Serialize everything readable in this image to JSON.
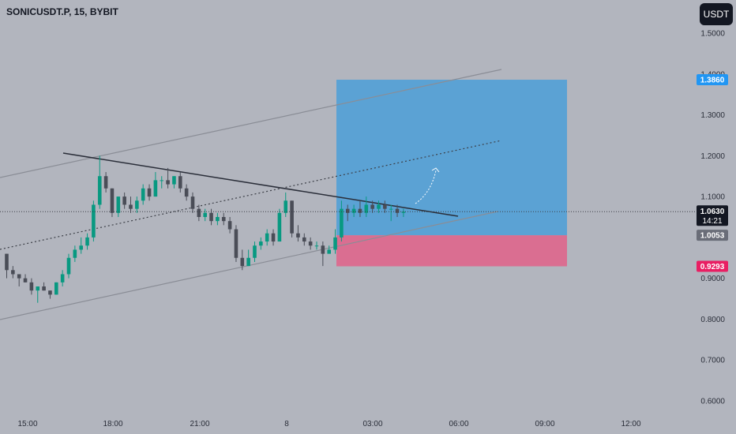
{
  "header": {
    "symbol": "SONICUSDT.P, 15, BYBIT",
    "currency": "USDT"
  },
  "colors": {
    "background": "#b2b5be",
    "bull": "#089981",
    "bear": "#4a4d57",
    "target_zone": "#4b9fd8",
    "stop_zone": "#e0628a",
    "target_tag": "#2196f3",
    "stop_tag": "#e91e63",
    "price_tag": "#131722",
    "gray_tag": "#6a6d78"
  },
  "chart_data": {
    "type": "candlestick",
    "title": "",
    "ylim": [
      0.58,
      1.52
    ],
    "y_ticks": [
      "1.5000",
      "1.4000",
      "1.3000",
      "1.2000",
      "1.1000",
      "0.9000",
      "0.8000",
      "0.7000",
      "0.6000"
    ],
    "x_ticks": [
      "15:00",
      "18:00",
      "21:00",
      "8",
      "03:00",
      "06:00",
      "09:00",
      "12:00"
    ],
    "candles": [
      [
        0.96,
        0.96,
        0.9,
        0.92
      ],
      [
        0.92,
        0.93,
        0.9,
        0.91
      ],
      [
        0.91,
        0.91,
        0.88,
        0.9
      ],
      [
        0.9,
        0.91,
        0.89,
        0.89
      ],
      [
        0.89,
        0.9,
        0.86,
        0.87
      ],
      [
        0.87,
        0.88,
        0.84,
        0.88
      ],
      [
        0.88,
        0.89,
        0.87,
        0.87
      ],
      [
        0.87,
        0.87,
        0.85,
        0.86
      ],
      [
        0.86,
        0.89,
        0.86,
        0.89
      ],
      [
        0.89,
        0.92,
        0.88,
        0.91
      ],
      [
        0.91,
        0.96,
        0.9,
        0.95
      ],
      [
        0.95,
        0.98,
        0.94,
        0.97
      ],
      [
        0.97,
        1.0,
        0.96,
        0.98
      ],
      [
        0.98,
        1.01,
        0.97,
        1.0
      ],
      [
        1.0,
        1.09,
        0.99,
        1.08
      ],
      [
        1.08,
        1.2,
        1.07,
        1.15
      ],
      [
        1.15,
        1.16,
        1.11,
        1.12
      ],
      [
        1.12,
        1.12,
        1.05,
        1.06
      ],
      [
        1.06,
        1.1,
        1.05,
        1.1
      ],
      [
        1.1,
        1.11,
        1.07,
        1.08
      ],
      [
        1.08,
        1.1,
        1.06,
        1.07
      ],
      [
        1.07,
        1.1,
        1.06,
        1.09
      ],
      [
        1.09,
        1.13,
        1.08,
        1.12
      ],
      [
        1.12,
        1.13,
        1.09,
        1.1
      ],
      [
        1.1,
        1.16,
        1.1,
        1.14
      ],
      [
        1.14,
        1.15,
        1.12,
        1.14
      ],
      [
        1.14,
        1.17,
        1.12,
        1.13
      ],
      [
        1.13,
        1.15,
        1.12,
        1.15
      ],
      [
        1.15,
        1.16,
        1.11,
        1.12
      ],
      [
        1.12,
        1.13,
        1.09,
        1.1
      ],
      [
        1.1,
        1.11,
        1.06,
        1.07
      ],
      [
        1.07,
        1.08,
        1.04,
        1.05
      ],
      [
        1.05,
        1.07,
        1.04,
        1.06
      ],
      [
        1.06,
        1.07,
        1.03,
        1.04
      ],
      [
        1.04,
        1.06,
        1.03,
        1.05
      ],
      [
        1.05,
        1.06,
        1.03,
        1.04
      ],
      [
        1.04,
        1.05,
        1.01,
        1.02
      ],
      [
        1.02,
        1.03,
        0.94,
        0.95
      ],
      [
        0.95,
        0.97,
        0.92,
        0.93
      ],
      [
        0.93,
        0.97,
        0.93,
        0.95
      ],
      [
        0.95,
        0.99,
        0.94,
        0.98
      ],
      [
        0.98,
        1.0,
        0.97,
        0.99
      ],
      [
        0.99,
        1.02,
        0.98,
        1.01
      ],
      [
        1.01,
        1.02,
        0.98,
        0.99
      ],
      [
        0.99,
        1.07,
        0.99,
        1.06
      ],
      [
        1.06,
        1.11,
        1.05,
        1.09
      ],
      [
        1.09,
        1.09,
        1.0,
        1.01
      ],
      [
        1.01,
        1.03,
        0.99,
        1.0
      ],
      [
        1.0,
        1.01,
        0.98,
        0.99
      ],
      [
        0.99,
        1.0,
        0.97,
        0.98
      ],
      [
        0.98,
        0.99,
        0.97,
        0.98
      ],
      [
        0.98,
        0.99,
        0.93,
        0.96
      ],
      [
        0.96,
        0.98,
        0.96,
        0.97
      ],
      [
        0.97,
        1.02,
        0.96,
        1.0
      ],
      [
        1.0,
        1.09,
        0.99,
        1.07
      ],
      [
        1.07,
        1.08,
        1.04,
        1.06
      ],
      [
        1.06,
        1.08,
        1.05,
        1.07
      ],
      [
        1.07,
        1.09,
        1.05,
        1.06
      ],
      [
        1.06,
        1.1,
        1.05,
        1.08
      ],
      [
        1.08,
        1.09,
        1.06,
        1.07
      ],
      [
        1.07,
        1.09,
        1.06,
        1.08
      ],
      [
        1.08,
        1.09,
        1.06,
        1.07
      ],
      [
        1.07,
        1.08,
        1.04,
        1.07
      ],
      [
        1.07,
        1.08,
        1.05,
        1.06
      ],
      [
        1.06,
        1.07,
        1.05,
        1.063
      ]
    ],
    "last_price": 1.063,
    "countdown": "14:21",
    "position": {
      "entry": 1.0053,
      "target": 1.386,
      "stop": 0.9293
    },
    "price_tags": [
      {
        "label": "1.3860",
        "value": 1.386,
        "kind": "target"
      },
      {
        "label": "1.0630",
        "value": 1.063,
        "kind": "price"
      },
      {
        "label": "1.0053",
        "value": 1.0053,
        "kind": "entry"
      },
      {
        "label": "0.9293",
        "value": 0.9293,
        "kind": "stop"
      }
    ]
  }
}
